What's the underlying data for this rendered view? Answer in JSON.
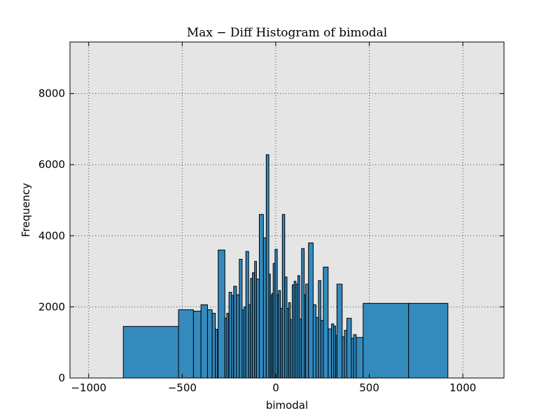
{
  "chart_data": {
    "type": "bar",
    "title": "Max − Diff Histogram of bimodal",
    "xlabel": "bimodal",
    "ylabel": "Frequency",
    "xlim": [
      -1100,
      1220
    ],
    "ylim": [
      0,
      9450
    ],
    "xticks": [
      -1000,
      -500,
      0,
      500,
      1000
    ],
    "xtick_labels": [
      "−1000",
      "−500",
      "0",
      "500",
      "1000"
    ],
    "yticks": [
      0,
      2000,
      4000,
      6000,
      8000
    ],
    "ytick_labels": [
      "0",
      "2000",
      "4000",
      "6000",
      "8000"
    ],
    "grid": true,
    "colors": {
      "bar_fill": "#348abd",
      "bar_edge": "#000000",
      "plot_background": "#e5e5e5",
      "grid": "#444444"
    },
    "bins": [
      {
        "x0": -815,
        "x1": -520,
        "count": 1450
      },
      {
        "x0": -520,
        "x1": -440,
        "count": 1920
      },
      {
        "x0": -440,
        "x1": -400,
        "count": 1880
      },
      {
        "x0": -400,
        "x1": -365,
        "count": 2060
      },
      {
        "x0": -365,
        "x1": -340,
        "count": 1920
      },
      {
        "x0": -340,
        "x1": -323,
        "count": 1820
      },
      {
        "x0": -323,
        "x1": -312,
        "count": 1370
      },
      {
        "x0": -308,
        "x1": -272,
        "count": 3600
      },
      {
        "x0": -272,
        "x1": -262,
        "count": 1680
      },
      {
        "x0": -262,
        "x1": -252,
        "count": 1820
      },
      {
        "x0": -250,
        "x1": -236,
        "count": 2410
      },
      {
        "x0": -236,
        "x1": -226,
        "count": 2320
      },
      {
        "x0": -225,
        "x1": -210,
        "count": 2580
      },
      {
        "x0": -210,
        "x1": -195,
        "count": 2340
      },
      {
        "x0": -195,
        "x1": -180,
        "count": 3340
      },
      {
        "x0": -180,
        "x1": -170,
        "count": 1920
      },
      {
        "x0": -170,
        "x1": -160,
        "count": 2000
      },
      {
        "x0": -160,
        "x1": -145,
        "count": 3560
      },
      {
        "x0": -145,
        "x1": -135,
        "count": 2060
      },
      {
        "x0": -135,
        "x1": -125,
        "count": 2800
      },
      {
        "x0": -125,
        "x1": -113,
        "count": 2960
      },
      {
        "x0": -113,
        "x1": -103,
        "count": 3280
      },
      {
        "x0": -103,
        "x1": -88,
        "count": 2780
      },
      {
        "x0": -88,
        "x1": -66,
        "count": 4600
      },
      {
        "x0": -66,
        "x1": -51,
        "count": 3940
      },
      {
        "x0": -51,
        "x1": -37,
        "count": 6280
      },
      {
        "x0": -37,
        "x1": -29,
        "count": 2920
      },
      {
        "x0": -29,
        "x1": -21,
        "count": 2320
      },
      {
        "x0": -21,
        "x1": -14,
        "count": 2380
      },
      {
        "x0": -14,
        "x1": -4,
        "count": 3220
      },
      {
        "x0": -4,
        "x1": 8,
        "count": 3620
      },
      {
        "x0": 8,
        "x1": 15,
        "count": 2340
      },
      {
        "x0": 15,
        "x1": 25,
        "count": 2460
      },
      {
        "x0": 25,
        "x1": 35,
        "count": 1960
      },
      {
        "x0": 35,
        "x1": 48,
        "count": 4600
      },
      {
        "x0": 48,
        "x1": 60,
        "count": 2840
      },
      {
        "x0": 60,
        "x1": 69,
        "count": 1960
      },
      {
        "x0": 69,
        "x1": 78,
        "count": 2120
      },
      {
        "x0": 78,
        "x1": 88,
        "count": 1640
      },
      {
        "x0": 88,
        "x1": 98,
        "count": 2620
      },
      {
        "x0": 98,
        "x1": 108,
        "count": 2720
      },
      {
        "x0": 108,
        "x1": 118,
        "count": 2640
      },
      {
        "x0": 118,
        "x1": 128,
        "count": 2880
      },
      {
        "x0": 128,
        "x1": 138,
        "count": 1660
      },
      {
        "x0": 138,
        "x1": 152,
        "count": 3640
      },
      {
        "x0": 152,
        "x1": 160,
        "count": 2340
      },
      {
        "x0": 160,
        "x1": 175,
        "count": 2640
      },
      {
        "x0": 175,
        "x1": 200,
        "count": 3800
      },
      {
        "x0": 200,
        "x1": 215,
        "count": 2060
      },
      {
        "x0": 215,
        "x1": 228,
        "count": 1700
      },
      {
        "x0": 228,
        "x1": 241,
        "count": 2740
      },
      {
        "x0": 241,
        "x1": 254,
        "count": 1620
      },
      {
        "x0": 254,
        "x1": 280,
        "count": 3120
      },
      {
        "x0": 280,
        "x1": 298,
        "count": 1380
      },
      {
        "x0": 298,
        "x1": 310,
        "count": 1520
      },
      {
        "x0": 310,
        "x1": 320,
        "count": 1460
      },
      {
        "x0": 320,
        "x1": 327,
        "count": 1200
      },
      {
        "x0": 327,
        "x1": 355,
        "count": 2640
      },
      {
        "x0": 355,
        "x1": 367,
        "count": 1160
      },
      {
        "x0": 367,
        "x1": 380,
        "count": 1340
      },
      {
        "x0": 380,
        "x1": 404,
        "count": 1680
      },
      {
        "x0": 404,
        "x1": 416,
        "count": 1120
      },
      {
        "x0": 416,
        "x1": 430,
        "count": 1220
      },
      {
        "x0": 430,
        "x1": 467,
        "count": 1140
      },
      {
        "x0": 467,
        "x1": 710,
        "count": 2100
      },
      {
        "x0": 710,
        "x1": 920,
        "count": 2100
      }
    ]
  }
}
